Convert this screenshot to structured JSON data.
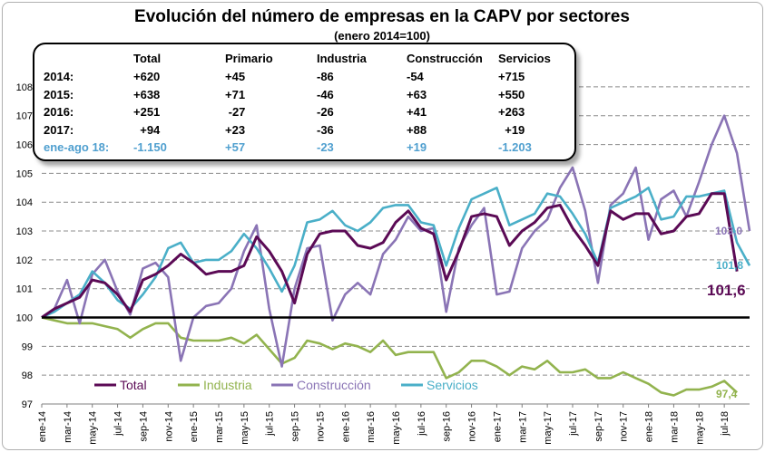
{
  "chart_data": {
    "type": "line",
    "title": "Evolución del número de empresas en la CAPV por sectores",
    "subtitle": "(enero 2014=100)",
    "xlabel": "",
    "ylabel": "",
    "ylim": [
      97,
      108.5
    ],
    "yticks": [
      97,
      98,
      99,
      100,
      101,
      102,
      103,
      104,
      105,
      106,
      107,
      108
    ],
    "xtick_labels": [
      "ene-14",
      "mar-14",
      "may-14",
      "jul-14",
      "sep-14",
      "nov-14",
      "ene-15",
      "mar-15",
      "may-15",
      "jul-15",
      "sep-15",
      "nov-15",
      "ene-16",
      "mar-16",
      "may-16",
      "jul-16",
      "sep-16",
      "nov-16",
      "ene-17",
      "mar-17",
      "may-17",
      "jul-17",
      "sep-17",
      "nov-17",
      "ene-18",
      "mar-18",
      "may-18",
      "jul-18"
    ],
    "grid": "horizontal dashed",
    "legend": "bottom-left",
    "series": [
      {
        "name": "Total",
        "color": "#5b0a55",
        "values": [
          100.0,
          100.3,
          100.5,
          100.7,
          101.3,
          101.2,
          100.8,
          100.2,
          101.3,
          101.5,
          101.8,
          102.2,
          101.9,
          101.5,
          101.6,
          101.6,
          101.8,
          102.8,
          102.3,
          101.6,
          100.5,
          102.2,
          102.9,
          103.0,
          103.0,
          102.5,
          102.4,
          102.6,
          103.3,
          103.7,
          103.1,
          102.9,
          101.3,
          102.3,
          103.5,
          103.6,
          103.5,
          102.5,
          103.0,
          103.3,
          103.8,
          103.9,
          103.1,
          102.5,
          101.8,
          103.7,
          103.4,
          103.6,
          103.6,
          102.9,
          103.0,
          103.5,
          103.6,
          104.3,
          104.3,
          101.6
        ],
        "end_label": "101,6"
      },
      {
        "name": "Industria",
        "color": "#92b34e",
        "values": [
          100.0,
          99.9,
          99.8,
          99.8,
          99.8,
          99.7,
          99.6,
          99.3,
          99.6,
          99.8,
          99.8,
          99.3,
          99.2,
          99.2,
          99.2,
          99.3,
          99.1,
          99.4,
          98.9,
          98.4,
          98.6,
          99.2,
          99.1,
          98.9,
          99.1,
          99.0,
          98.8,
          99.2,
          98.7,
          98.8,
          98.8,
          98.8,
          97.9,
          98.1,
          98.5,
          98.5,
          98.3,
          98.0,
          98.3,
          98.2,
          98.5,
          98.1,
          98.1,
          98.2,
          97.9,
          97.9,
          98.1,
          97.9,
          97.7,
          97.4,
          97.3,
          97.5,
          97.5,
          97.6,
          97.8,
          97.4
        ],
        "end_label": "97,4"
      },
      {
        "name": "Construcción",
        "color": "#8a74b5",
        "values": [
          100.0,
          100.3,
          101.3,
          99.8,
          101.5,
          102.0,
          100.9,
          100.1,
          101.7,
          101.9,
          101.4,
          98.5,
          100.0,
          100.4,
          100.5,
          101.0,
          102.3,
          103.2,
          100.3,
          98.3,
          101.0,
          102.4,
          102.5,
          99.9,
          100.8,
          101.2,
          100.8,
          102.2,
          102.7,
          103.5,
          103.0,
          103.1,
          100.2,
          102.4,
          103.2,
          103.8,
          100.8,
          100.9,
          102.4,
          103.0,
          103.4,
          104.5,
          105.2,
          103.7,
          101.2,
          103.9,
          104.3,
          105.2,
          102.7,
          104.1,
          104.4,
          103.5,
          104.7,
          106.0,
          107.0,
          105.7,
          103.0
        ],
        "end_label": "103,0"
      },
      {
        "name": "Servicios",
        "color": "#4aafc8",
        "values": [
          100.0,
          100.2,
          100.5,
          100.8,
          101.6,
          101.2,
          100.6,
          100.3,
          100.8,
          101.4,
          102.4,
          102.6,
          101.9,
          102.0,
          102.0,
          102.3,
          102.9,
          102.4,
          101.7,
          100.9,
          101.8,
          103.3,
          103.4,
          103.7,
          103.2,
          103.0,
          103.3,
          103.8,
          103.9,
          103.9,
          103.3,
          103.2,
          101.8,
          103.1,
          104.1,
          104.3,
          104.5,
          103.2,
          103.4,
          103.6,
          104.3,
          104.2,
          103.6,
          102.9,
          101.9,
          103.8,
          104.0,
          104.2,
          104.5,
          103.4,
          103.5,
          104.2,
          104.2,
          104.3,
          104.4,
          102.6,
          101.8
        ],
        "end_label": "101,8"
      }
    ],
    "baseline": 100,
    "summary_table": {
      "headers": [
        "",
        "Total",
        "Primario",
        "Industria",
        "Construcción",
        "Servicios"
      ],
      "rows": [
        [
          "2014:",
          "+620",
          "+45",
          "-86",
          "-54",
          "+715"
        ],
        [
          "2015:",
          "+638",
          "+71",
          "-46",
          "+63",
          "+550"
        ],
        [
          "2016:",
          "+251",
          " -27",
          "-26",
          "+41",
          "+263"
        ],
        [
          "2017:",
          "  +94",
          "+23",
          "-36",
          "+88",
          "  +19"
        ],
        [
          "ene-ago 18:",
          "-1.150",
          "+57",
          "-23",
          "+19",
          "-1.203"
        ]
      ],
      "highlight_color": "#4f9fcf"
    }
  }
}
